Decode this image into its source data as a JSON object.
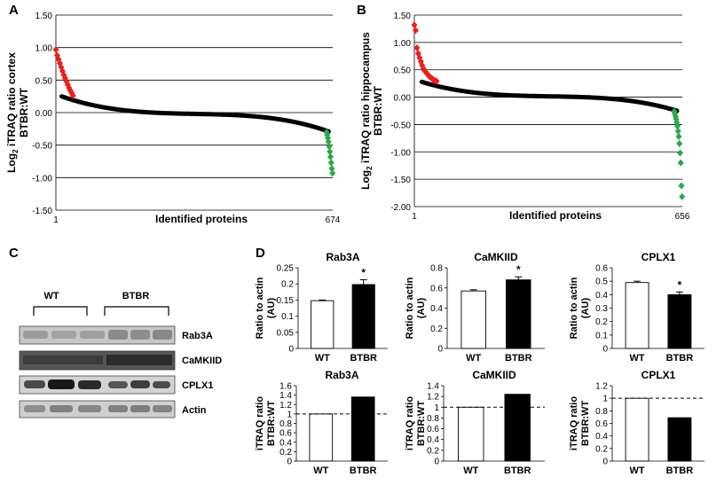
{
  "panel_labels": {
    "a": "A",
    "b": "B",
    "c": "C",
    "d": "D"
  },
  "chart_data": [
    {
      "id": "A",
      "type": "scatter",
      "title": "",
      "ylabel": "Log2 iTRAQ ratio cortex BTBR:WT",
      "ylabel_line1": "Log",
      "ylabel_sub": "2",
      "ylabel_rest": " iTRAQ ratio cortex",
      "ylabel_line2": "BTBR:WT",
      "xlabel": "Identified proteins",
      "x_tick_start": "1",
      "x_tick_end": "674",
      "n_points": 674,
      "ylim": [
        -1.5,
        1.5
      ],
      "yticks": [
        "1.50",
        "1.00",
        "0.50",
        "0.00",
        "-0.50",
        "-1.00",
        "-1.50"
      ],
      "ytick_values": [
        1.5,
        1.0,
        0.5,
        0.0,
        -0.5,
        -1.0,
        -1.5
      ],
      "grid": true,
      "colors": {
        "up": "#e8211f",
        "mid": "#000000",
        "down": "#2aa84a"
      },
      "up_values": [
        0.97,
        0.88,
        0.82,
        0.76,
        0.7,
        0.64,
        0.58,
        0.53,
        0.48,
        0.43,
        0.38,
        0.34,
        0.3,
        0.26
      ],
      "down_values": [
        -0.3,
        -0.34,
        -0.39,
        -0.45,
        -0.52,
        -0.6,
        -0.68,
        -0.77,
        -0.86,
        -0.93
      ],
      "mid_range": [
        0.25,
        -0.29
      ]
    },
    {
      "id": "B",
      "type": "scatter",
      "title": "",
      "ylabel": "Log2 iTRAQ ratio hippocampus BTBR:WT",
      "ylabel_line1": "Log",
      "ylabel_sub": "2",
      "ylabel_rest": " iTRAQ ratio hippocampus",
      "ylabel_line2": "BTBR:WT",
      "xlabel": "Identified proteins",
      "x_tick_start": "1",
      "x_tick_end": "656",
      "n_points": 656,
      "ylim": [
        -2.0,
        1.5
      ],
      "yticks": [
        "1.50",
        "1.00",
        "0.50",
        "0.00",
        "-0.50",
        "-1.00",
        "-1.50",
        "-2.00"
      ],
      "ytick_values": [
        1.5,
        1.0,
        0.5,
        0.0,
        -0.5,
        -1.0,
        -1.5,
        -2.0
      ],
      "grid": true,
      "colors": {
        "up": "#e8211f",
        "mid": "#000000",
        "down": "#2aa84a"
      },
      "up_values": [
        1.32,
        1.22,
        0.9,
        0.8,
        0.72,
        0.65,
        0.58,
        0.52,
        0.48,
        0.45,
        0.42,
        0.39,
        0.37,
        0.35,
        0.33,
        0.31,
        0.3,
        0.29
      ],
      "down_values": [
        -0.26,
        -0.3,
        -0.35,
        -0.4,
        -0.46,
        -0.53,
        -0.62,
        -0.72,
        -0.85,
        -1.02,
        -1.2,
        -1.62,
        -1.82
      ],
      "mid_range": [
        0.28,
        -0.25
      ]
    },
    {
      "id": "D1",
      "type": "bar",
      "title": "Rab3A",
      "ylabel": "Ratio to actin (AU)",
      "ylabel_line1": "Ratio to actin",
      "ylabel_line2": "(AU)",
      "categories": [
        "WT",
        "BTBR"
      ],
      "values": [
        0.148,
        0.198
      ],
      "errors": [
        0.002,
        0.015
      ],
      "fills": [
        "#ffffff",
        "#000000"
      ],
      "sig": "*",
      "ylim": [
        0,
        0.25
      ],
      "yticks": [
        "0.25",
        "0.2",
        "0.15",
        "0.1",
        "0.05",
        "0"
      ],
      "ytick_values": [
        0.25,
        0.2,
        0.15,
        0.1,
        0.05,
        0
      ]
    },
    {
      "id": "D2",
      "type": "bar",
      "title": "CaMKIID",
      "ylabel": "Ratio to actin (AU)",
      "ylabel_line1": "Ratio to actin",
      "ylabel_line2": "(AU)",
      "categories": [
        "WT",
        "BTBR"
      ],
      "values": [
        0.57,
        0.68
      ],
      "errors": [
        0.012,
        0.03
      ],
      "fills": [
        "#ffffff",
        "#000000"
      ],
      "sig": "*",
      "ylim": [
        0,
        0.8
      ],
      "yticks": [
        "0.8",
        "0.6",
        "0.4",
        "0.2",
        "0"
      ],
      "ytick_values": [
        0.8,
        0.6,
        0.4,
        0.2,
        0
      ]
    },
    {
      "id": "D3",
      "type": "bar",
      "title": "CPLX1",
      "ylabel": "Ratio to actin (AU)",
      "ylabel_line1": "Ratio to actin",
      "ylabel_line2": "(AU)",
      "categories": [
        "WT",
        "BTBR"
      ],
      "values": [
        0.49,
        0.4
      ],
      "errors": [
        0.01,
        0.02
      ],
      "fills": [
        "#ffffff",
        "#000000"
      ],
      "sig": "*",
      "ylim": [
        0,
        0.6
      ],
      "yticks": [
        "0.6",
        "0.5",
        "0.4",
        "0.3",
        "0.2",
        "0.1",
        "0"
      ],
      "ytick_values": [
        0.6,
        0.5,
        0.4,
        0.3,
        0.2,
        0.1,
        0
      ]
    },
    {
      "id": "D4",
      "type": "bar",
      "title": "Rab3A",
      "ylabel": "iTRAQ ratio BTBR:WT",
      "ylabel_line1": "iTRAQ ratio",
      "ylabel_line2": "BTBR:WT",
      "categories": [
        "WT",
        "BTBR"
      ],
      "values": [
        1.0,
        1.36
      ],
      "errors": [
        0,
        0
      ],
      "fills": [
        "#ffffff",
        "#000000"
      ],
      "sig": "",
      "ylim": [
        0,
        1.6
      ],
      "yticks": [
        "1.6",
        "1.4",
        "1.2",
        "1",
        "0.8",
        "0.6",
        "0.4",
        "0.2",
        "0"
      ],
      "ytick_values": [
        1.6,
        1.4,
        1.2,
        1.0,
        0.8,
        0.6,
        0.4,
        0.2,
        0
      ],
      "refline": 1.0
    },
    {
      "id": "D5",
      "type": "bar",
      "title": "CaMKIID",
      "ylabel": "iTRAQ ratio BTBR:WT",
      "ylabel_line1": "iTRAQ ratio",
      "ylabel_line2": "BTBR:WT",
      "categories": [
        "WT",
        "BTBR"
      ],
      "values": [
        1.0,
        1.24
      ],
      "errors": [
        0,
        0
      ],
      "fills": [
        "#ffffff",
        "#000000"
      ],
      "sig": "",
      "ylim": [
        0,
        1.4
      ],
      "yticks": [
        "1.4",
        "1.2",
        "1",
        "0.8",
        "0.6",
        "0.4",
        "0.2",
        "0"
      ],
      "ytick_values": [
        1.4,
        1.2,
        1.0,
        0.8,
        0.6,
        0.4,
        0.2,
        0
      ],
      "refline": 1.0
    },
    {
      "id": "D6",
      "type": "bar",
      "title": "CPLX1",
      "ylabel": "iTRAQ ratio BTBR:WT",
      "ylabel_line1": "iTRAQ ratio",
      "ylabel_line2": "BTBR:WT",
      "categories": [
        "WT",
        "BTBR"
      ],
      "values": [
        1.0,
        0.69
      ],
      "errors": [
        0,
        0
      ],
      "fills": [
        "#ffffff",
        "#000000"
      ],
      "sig": "",
      "ylim": [
        0,
        1.2
      ],
      "yticks": [
        "1.2",
        "1",
        "0.8",
        "0.6",
        "0.4",
        "0.2",
        "0"
      ],
      "ytick_values": [
        1.2,
        1.0,
        0.8,
        0.6,
        0.4,
        0.2,
        0
      ],
      "refline": 1.0
    }
  ],
  "blot": {
    "group_labels": [
      "WT",
      "BTBR"
    ],
    "rows": [
      "Rab3A",
      "CaMKIID",
      "CPLX1",
      "Actin"
    ]
  }
}
